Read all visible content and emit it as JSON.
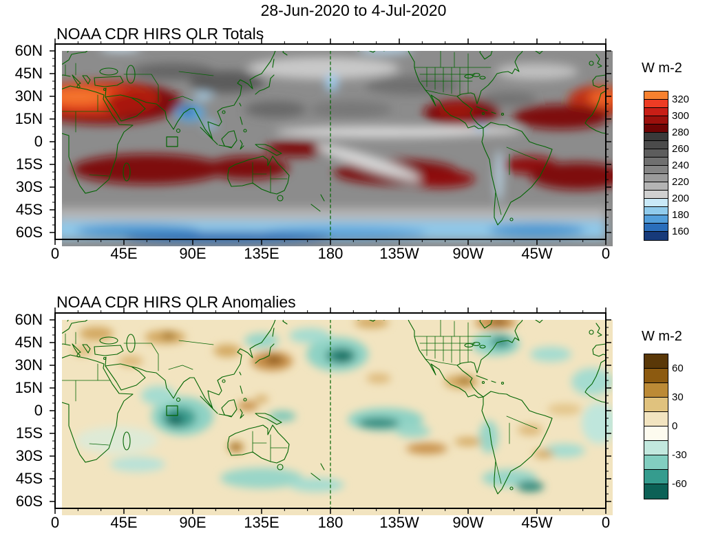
{
  "header": {
    "title": "28-Jun-2020 to 4-Jul-2020"
  },
  "chart_data": {
    "type": "heatmap",
    "title": "28-Jun-2020 to 4-Jul-2020",
    "layout": "two stacked global filled-contour maps (0-360E, ~64N-64S), green coastlines and country borders, dashed meridian at 180, small outlined study box near 75E on the equator, discrete colorbars at right",
    "panels": [
      {
        "title": "NOAA CDR HIRS OLR Totals",
        "colorbar": {
          "units_label": "W m-2",
          "tick_labels": [
            "320",
            "300",
            "280",
            "260",
            "240",
            "220",
            "200",
            "180",
            "160"
          ],
          "cell_colors": [
            "#F8812F",
            "#EE3C24",
            "#C81E16",
            "#9C100C",
            "#6E0404",
            "#3A3A3A",
            "#4B4B4B",
            "#5D5D5D",
            "#707070",
            "#858585",
            "#9B9B9B",
            "#B4B4B4",
            "#D0D0D0",
            "#C9E9F8",
            "#90CBEC",
            "#539FDB",
            "#2A6EBB",
            "#173A7A"
          ]
        },
        "field_summary": "High OLR (orange/dark red, >280) over North Africa-Arabia and subtropical ocean bands; grays 200-280 elsewhere; low OLR (blues, <200) over Indian monsoon convection and poleward of ~50S"
      },
      {
        "title": "NOAA CDR HIRS OLR Anomalies",
        "colorbar": {
          "units_label": "W m-2",
          "tick_labels": [
            "60",
            "30",
            "0",
            "-30",
            "-60"
          ],
          "cell_colors": [
            "#5A3808",
            "#8C5A10",
            "#BC8A36",
            "#E0C27E",
            "#F2E4C0",
            "#FDFBEF",
            "#C2E8DE",
            "#82CEC0",
            "#359C8E",
            "#0C6156"
          ]
        },
        "field_summary": "Negative anomalies (teal) over the central Indian Ocean, North Pacific, equatorial central Pacific and eastern North America; positive anomalies (brown) over the western North Pacific, central Asia and northeastern Canada"
      }
    ],
    "axes": {
      "lat_tick_labels": [
        "60N",
        "45N",
        "30N",
        "15N",
        "0",
        "15S",
        "30S",
        "45S",
        "60S"
      ],
      "lon_tick_labels": [
        "0",
        "45E",
        "90E",
        "135E",
        "180",
        "135W",
        "90W",
        "45W",
        "0"
      ],
      "lat_range_deg": [
        64.5,
        -64.5
      ],
      "lon_range_deg": [
        0,
        360
      ]
    },
    "map_colors": {
      "coastline": "#006400",
      "dateline_dashed": "#006400",
      "totals_background": "#8C8C8C",
      "anomaly_background": "#F2E4C0"
    }
  }
}
